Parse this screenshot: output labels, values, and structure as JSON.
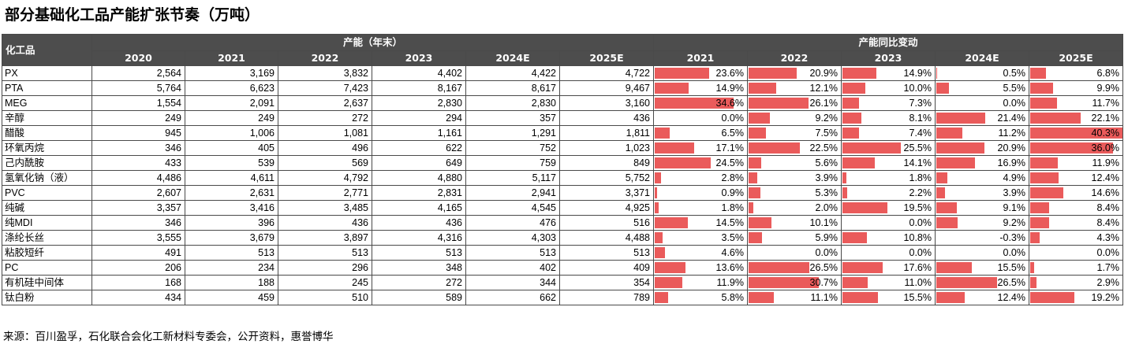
{
  "title": "部分基础化工品产能扩张节奏（万吨）",
  "table": {
    "corner_header": "化工品",
    "group_capacity": "产能（年末）",
    "group_change": "产能同比变动",
    "capacity_years": [
      "2020",
      "2021",
      "2022",
      "2023",
      "2024E",
      "2025E"
    ],
    "change_years": [
      "2021",
      "2022",
      "2023",
      "2024E",
      "2025E"
    ],
    "bar_color": "#ea5b5b",
    "bar_max_percent": 40.3,
    "rows": [
      {
        "name": "PX",
        "capacity": [
          "2,564",
          "3,169",
          "3,832",
          "4,402",
          "4,422",
          "4,722"
        ],
        "change": [
          "23.6%",
          "20.9%",
          "14.9%",
          "0.5%",
          "6.8%"
        ]
      },
      {
        "name": "PTA",
        "capacity": [
          "5,764",
          "6,623",
          "7,423",
          "8,167",
          "8,617",
          "9,467"
        ],
        "change": [
          "14.9%",
          "12.1%",
          "10.0%",
          "5.5%",
          "9.9%"
        ]
      },
      {
        "name": "MEG",
        "capacity": [
          "1,554",
          "2,091",
          "2,637",
          "2,830",
          "2,830",
          "3,160"
        ],
        "change": [
          "34.6%",
          "26.1%",
          "7.3%",
          "0.0%",
          "11.7%"
        ]
      },
      {
        "name": "辛醇",
        "capacity": [
          "249",
          "249",
          "272",
          "294",
          "357",
          "436"
        ],
        "change": [
          "0.0%",
          "9.2%",
          "8.1%",
          "21.4%",
          "22.1%"
        ]
      },
      {
        "name": "醋酸",
        "capacity": [
          "945",
          "1,006",
          "1,081",
          "1,161",
          "1,291",
          "1,811"
        ],
        "change": [
          "6.5%",
          "7.5%",
          "7.4%",
          "11.2%",
          "40.3%"
        ]
      },
      {
        "name": "环氧丙烷",
        "capacity": [
          "346",
          "405",
          "496",
          "622",
          "752",
          "1,023"
        ],
        "change": [
          "17.1%",
          "22.5%",
          "25.5%",
          "20.9%",
          "36.0%"
        ]
      },
      {
        "name": "己内酰胺",
        "capacity": [
          "433",
          "539",
          "569",
          "649",
          "759",
          "849"
        ],
        "change": [
          "24.5%",
          "5.6%",
          "14.1%",
          "16.9%",
          "11.9%"
        ]
      },
      {
        "name": "氢氧化钠（液）",
        "capacity": [
          "4,486",
          "4,611",
          "4,792",
          "4,880",
          "5,117",
          "5,752"
        ],
        "change": [
          "2.8%",
          "3.9%",
          "1.8%",
          "4.9%",
          "12.4%"
        ]
      },
      {
        "name": "PVC",
        "capacity": [
          "2,607",
          "2,631",
          "2,771",
          "2,831",
          "2,941",
          "3,371"
        ],
        "change": [
          "0.9%",
          "5.3%",
          "2.2%",
          "3.9%",
          "14.6%"
        ]
      },
      {
        "name": "纯碱",
        "capacity": [
          "3,357",
          "3,416",
          "3,485",
          "4,165",
          "4,545",
          "4,925"
        ],
        "change": [
          "1.8%",
          "2.0%",
          "19.5%",
          "9.1%",
          "8.4%"
        ]
      },
      {
        "name": "纯MDI",
        "capacity": [
          "346",
          "396",
          "436",
          "436",
          "476",
          "516"
        ],
        "change": [
          "14.5%",
          "10.1%",
          "0.0%",
          "9.2%",
          "8.4%"
        ]
      },
      {
        "name": "涤纶长丝",
        "capacity": [
          "3,555",
          "3,679",
          "3,897",
          "4,316",
          "4,303",
          "4,488"
        ],
        "change": [
          "3.5%",
          "5.9%",
          "10.8%",
          "-0.3%",
          "4.3%"
        ]
      },
      {
        "name": "粘胶短纤",
        "capacity": [
          "491",
          "513",
          "513",
          "513",
          "513",
          "513"
        ],
        "change": [
          "4.6%",
          "0.0%",
          "0.0%",
          "0.0%",
          "0.0%"
        ]
      },
      {
        "name": "PC",
        "capacity": [
          "206",
          "234",
          "296",
          "348",
          "402",
          "409"
        ],
        "change": [
          "13.6%",
          "26.5%",
          "17.6%",
          "15.5%",
          "1.7%"
        ]
      },
      {
        "name": "有机硅中间体",
        "capacity": [
          "168",
          "188",
          "245",
          "272",
          "344",
          "354"
        ],
        "change": [
          "11.9%",
          "30.7%",
          "11.0%",
          "26.5%",
          "2.9%"
        ]
      },
      {
        "name": "钛白粉",
        "capacity": [
          "434",
          "459",
          "510",
          "589",
          "662",
          "789"
        ],
        "change": [
          "5.8%",
          "11.1%",
          "15.5%",
          "12.4%",
          "19.2%"
        ]
      }
    ]
  },
  "source": "来源：百川盈孚，石化联合会化工新材料专委会，公开资料，惠誉博华"
}
